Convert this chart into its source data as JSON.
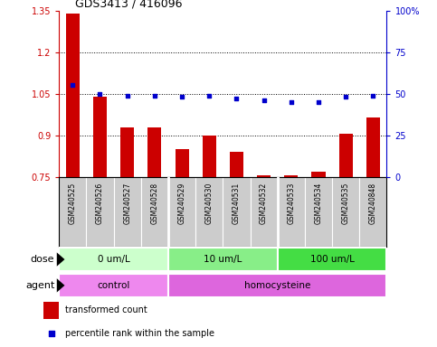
{
  "title": "GDS3413 / 416096",
  "samples": [
    "GSM240525",
    "GSM240526",
    "GSM240527",
    "GSM240528",
    "GSM240529",
    "GSM240530",
    "GSM240531",
    "GSM240532",
    "GSM240533",
    "GSM240534",
    "GSM240535",
    "GSM240848"
  ],
  "bar_values": [
    1.34,
    1.04,
    0.93,
    0.93,
    0.85,
    0.9,
    0.84,
    0.755,
    0.755,
    0.77,
    0.905,
    0.965
  ],
  "dot_values": [
    55,
    50,
    49,
    49,
    48,
    49,
    47,
    46,
    45,
    45,
    48,
    49
  ],
  "bar_color": "#cc0000",
  "dot_color": "#0000cc",
  "ylim_left": [
    0.75,
    1.35
  ],
  "ylim_right": [
    0,
    100
  ],
  "yticks_left": [
    0.75,
    0.9,
    1.05,
    1.2,
    1.35
  ],
  "yticks_right": [
    0,
    25,
    50,
    75,
    100
  ],
  "ytick_labels_left": [
    "0.75",
    "0.9",
    "1.05",
    "1.2",
    "1.35"
  ],
  "ytick_labels_right": [
    "0",
    "25",
    "50",
    "75",
    "100%"
  ],
  "dose_groups": [
    {
      "label": "0 um/L",
      "start": 0,
      "end": 4,
      "color": "#ccffcc"
    },
    {
      "label": "10 um/L",
      "start": 4,
      "end": 8,
      "color": "#88ee88"
    },
    {
      "label": "100 um/L",
      "start": 8,
      "end": 12,
      "color": "#44dd44"
    }
  ],
  "agent_groups": [
    {
      "label": "control",
      "start": 0,
      "end": 4,
      "color": "#ee88ee"
    },
    {
      "label": "homocysteine",
      "start": 4,
      "end": 12,
      "color": "#dd66dd"
    }
  ],
  "legend_bar_label": "transformed count",
  "legend_dot_label": "percentile rank within the sample",
  "xlabel_dose": "dose",
  "xlabel_agent": "agent",
  "background_color": "#ffffff",
  "sample_bg_color": "#cccccc",
  "sample_sep_color": "#ffffff"
}
